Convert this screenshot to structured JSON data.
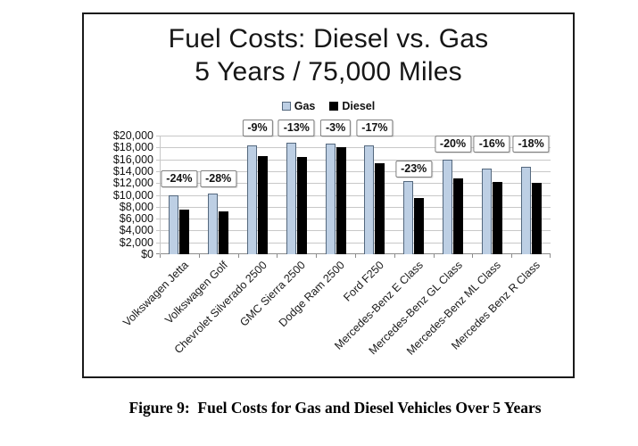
{
  "figure": {
    "title_line1": "Fuel Costs: Diesel vs. Gas",
    "title_line2": "5 Years / 75,000 Miles",
    "caption": "Figure 9:  Fuel Costs for Gas and Diesel Vehicles Over 5 Years"
  },
  "legend": {
    "items": [
      {
        "label": "Gas",
        "swatch": "gas"
      },
      {
        "label": "Diesel",
        "swatch": "diesel"
      }
    ]
  },
  "colors": {
    "gas_fill": "#BDCFE4",
    "gas_border": "#54687E",
    "diesel_fill": "#000000",
    "gridline": "#C8C8C8",
    "axis_line": "#8C8C8C",
    "callout_border": "#808080",
    "figure_border": "#1A1A1A"
  },
  "chart_data": {
    "type": "bar",
    "title": "Fuel Costs: Diesel vs. Gas 5 Years / 75,000 Miles",
    "xlabel": "",
    "ylabel": "",
    "grid": "horizontal",
    "legend_position": "top",
    "ylim": [
      0,
      20000
    ],
    "ytick_step": 2000,
    "ytick_labels": [
      "$20,000",
      "$18,000",
      "$16,000",
      "$14,000",
      "$12,000",
      "$10,000",
      "$8,000",
      "$6,000",
      "$4,000",
      "$2,000",
      "$0"
    ],
    "categories": [
      "Volkswagen Jetta",
      "Volkswagen Golf",
      "Chevrolet Silverado 2500",
      "GMC Sierra 2500",
      "Dodge Ram 2500",
      "Ford F250",
      "Mercedes-Benz E Class",
      "Mercedes-Benz GL Class",
      "Mercedes-Benz ML Class",
      "Mercedes Benz R Class"
    ],
    "series": [
      {
        "name": "Gas",
        "values": [
          10000,
          10200,
          18300,
          18800,
          18600,
          18400,
          12400,
          16000,
          14500,
          14700
        ]
      },
      {
        "name": "Diesel",
        "values": [
          7600,
          7300,
          16600,
          16400,
          18000,
          15300,
          9500,
          12800,
          12200,
          12100
        ]
      }
    ],
    "pct_labels": [
      "-24%",
      "-28%",
      "-9%",
      "-13%",
      "-3%",
      "-17%",
      "-23%",
      "-20%",
      "-16%",
      "-18%"
    ],
    "pct_label_center_values": [
      12800,
      12800,
      21300,
      21300,
      21300,
      21300,
      14400,
      18600,
      18600,
      18600
    ]
  }
}
